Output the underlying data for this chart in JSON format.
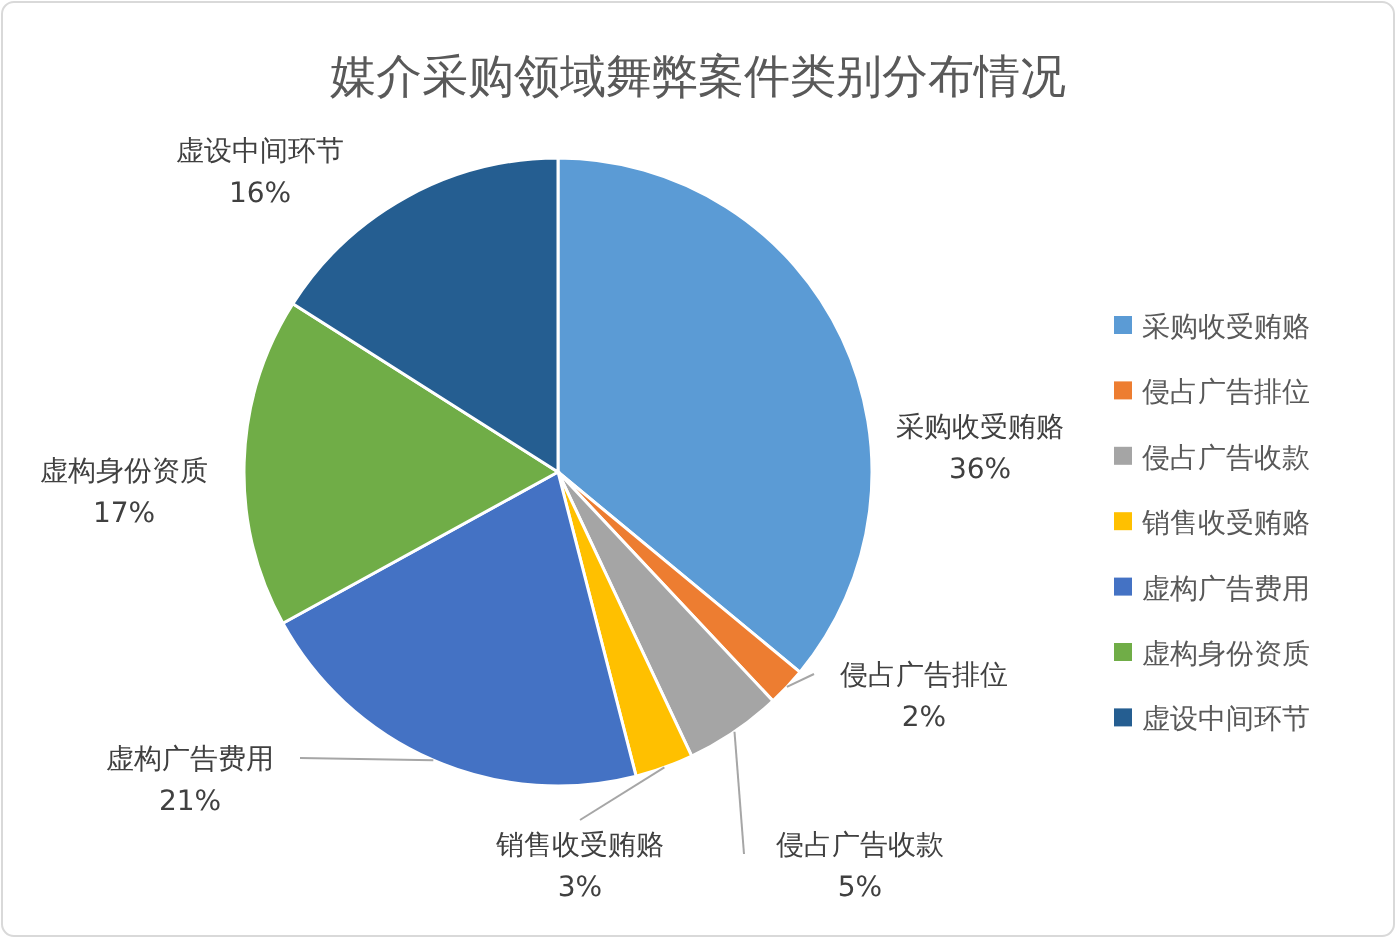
{
  "chart_data": {
    "type": "pie",
    "title": "媒介采购领域舞弊案件类别分布情况",
    "categories": [
      "采购收受贿赂",
      "侵占广告排位",
      "侵占广告收款",
      "销售收受贿赂",
      "虚构广告费用",
      "虚构身份资质",
      "虚设中间环节"
    ],
    "values": [
      36,
      2,
      5,
      3,
      21,
      17,
      16
    ],
    "value_labels": [
      "36%",
      "2%",
      "5%",
      "3%",
      "21%",
      "17%",
      "16%"
    ],
    "colors": [
      "#5b9bd5",
      "#ed7d31",
      "#a5a5a5",
      "#ffc000",
      "#4472c4",
      "#70ad47",
      "#255e91"
    ],
    "legend": "right"
  }
}
